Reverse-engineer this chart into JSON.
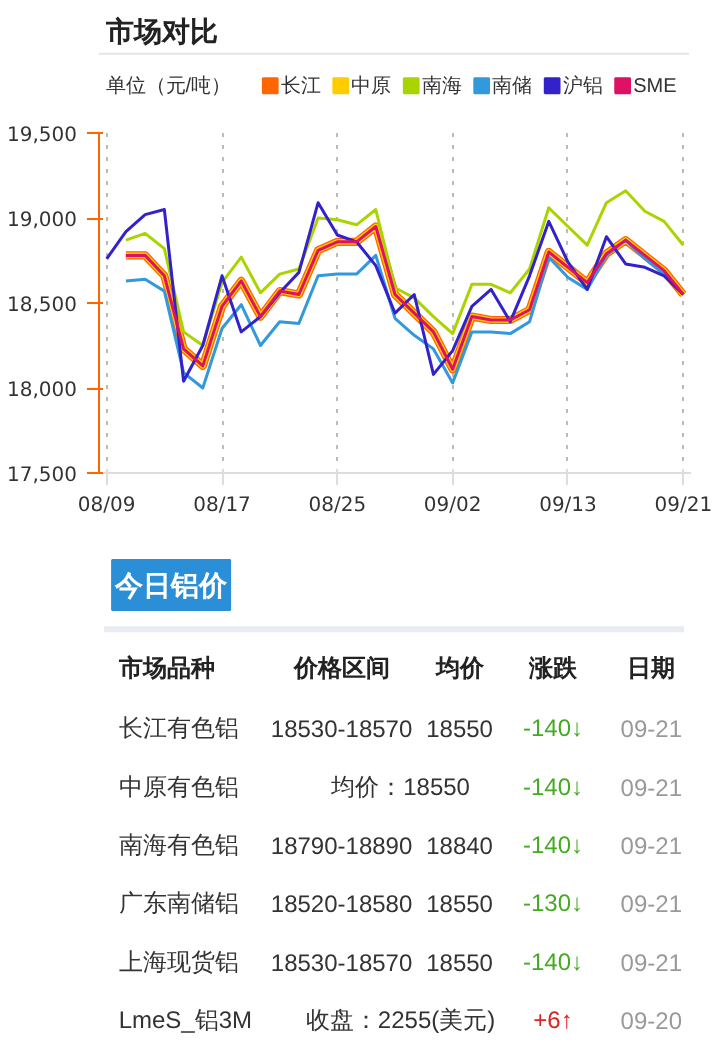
{
  "chart_data": {
    "type": "line",
    "title": "市场对比",
    "ylabel": "单位（元/吨）",
    "categories": [
      "08/09",
      null,
      null,
      null,
      null,
      null,
      "08/17",
      null,
      null,
      null,
      null,
      null,
      "08/25",
      null,
      null,
      null,
      null,
      null,
      "09/02",
      null,
      null,
      null,
      null,
      null,
      "09/13",
      null,
      null,
      null,
      null,
      null,
      "09/21"
    ],
    "ylim": [
      17500,
      19500
    ],
    "yticks": [
      {
        "value": 17500,
        "label": "17,500"
      },
      {
        "value": 18000,
        "label": "18,000"
      },
      {
        "value": 18500,
        "label": "18,500"
      },
      {
        "value": 19000,
        "label": "19,000"
      },
      {
        "value": 19500,
        "label": "19,500"
      }
    ],
    "grid": "x",
    "legend": "top",
    "marker": "none",
    "line_style": "solid",
    "series": [
      {
        "name": "长江",
        "color": "#ff6600",
        "values": [
          null,
          18780,
          18780,
          18660,
          18230,
          18130,
          18480,
          18630,
          18420,
          18570,
          18550,
          18810,
          18860,
          18860,
          18950,
          18550,
          18440,
          18330,
          18110,
          18420,
          18400,
          18400,
          18460,
          18800,
          18710,
          18620,
          18790,
          18870,
          18780,
          18690,
          18550
        ]
      },
      {
        "name": "中原",
        "color": "#ffcc00",
        "values": [
          null,
          18780,
          18780,
          18660,
          18230,
          18130,
          18480,
          18630,
          18420,
          18570,
          18550,
          18810,
          18860,
          18860,
          18950,
          18550,
          18440,
          18330,
          18110,
          18420,
          18400,
          18400,
          18460,
          18800,
          18710,
          18620,
          18790,
          18870,
          18780,
          18690,
          18550
        ]
      },
      {
        "name": "南海",
        "color": "#aad400",
        "values": [
          null,
          18870,
          18910,
          18820,
          18330,
          18250,
          18620,
          18770,
          18560,
          18670,
          18700,
          19000,
          18990,
          18960,
          19050,
          18590,
          18530,
          18420,
          18320,
          18610,
          18610,
          18560,
          18700,
          19060,
          18950,
          18840,
          19090,
          19160,
          19040,
          18980,
          18840
        ]
      },
      {
        "name": "南储",
        "color": "#3399dd",
        "values": [
          null,
          18630,
          18640,
          18570,
          18090,
          18000,
          18350,
          18490,
          18250,
          18390,
          18380,
          18660,
          18670,
          18670,
          18780,
          18410,
          18310,
          18230,
          18030,
          18330,
          18330,
          18320,
          18390,
          18770,
          18650,
          18580,
          18780,
          18870,
          18760,
          18670,
          18550
        ]
      },
      {
        "name": "沪铝",
        "color": "#3322cc",
        "values": [
          18760,
          18920,
          19020,
          19050,
          18040,
          18250,
          18660,
          18330,
          18420,
          18560,
          18680,
          19090,
          18900,
          18860,
          18720,
          18440,
          18550,
          18080,
          18220,
          18480,
          18580,
          18390,
          18660,
          18980,
          18740,
          18580,
          18890,
          18730,
          18710,
          18660,
          18550
        ]
      },
      {
        "name": "SME",
        "color": "#dd1166",
        "values": [
          null,
          18780,
          18780,
          18660,
          18230,
          18130,
          18480,
          18630,
          18420,
          18570,
          18550,
          18810,
          18860,
          18860,
          18950,
          18550,
          18440,
          18330,
          18110,
          18420,
          18400,
          18400,
          18460,
          18800,
          18710,
          18620,
          18790,
          18870,
          18780,
          18690,
          18550
        ]
      }
    ],
    "annotations": [
      "今日铝价",
      "市场品种",
      "价格区间",
      "均价",
      "涨跌",
      "日期",
      "长江有色铝",
      "18530-18570",
      "18550",
      "-140↓",
      "09-21",
      "中原有色铝",
      "均价：18550",
      "-140↓",
      "09-21",
      "南海有色铝",
      "18790-18890",
      "18840",
      "-140↓",
      "09-21",
      "广东南储铝",
      "18520-18580",
      "18550",
      "-130↓",
      "09-21",
      "上海现货铝",
      "18530-18570",
      "18550",
      "-140↓",
      "09-21",
      "LmeS_铝3M",
      "收盘：2255(美元)",
      "+6↑",
      "09-20"
    ]
  }
}
